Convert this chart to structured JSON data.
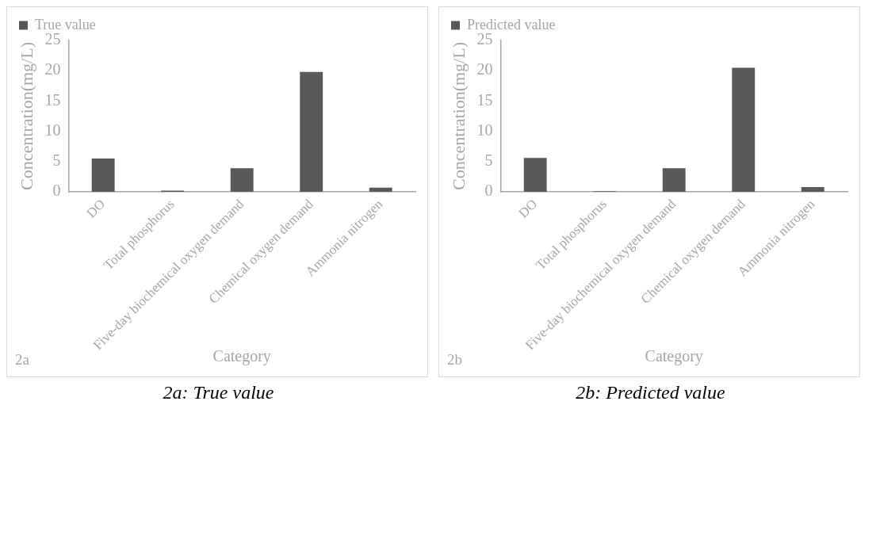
{
  "chart_data": [
    {
      "type": "bar",
      "categories": [
        "DO",
        "Total phosphorus",
        "Five-day biochemical oxygen demand",
        "Chemical oxygen demand",
        "Ammonia nitrogen"
      ],
      "series": [
        {
          "name": "True value",
          "color": "#595959",
          "values": [
            5.5,
            0.2,
            3.9,
            19.8,
            0.7
          ]
        }
      ],
      "xlabel": "Category",
      "ylabel": "Concentration(mg/L)",
      "ylim": [
        0,
        25
      ],
      "yticks": [
        0,
        5,
        10,
        15,
        20,
        25
      ],
      "grid": false,
      "legend": "top",
      "annotations": [
        "2a",
        "2a: True value"
      ]
    },
    {
      "type": "bar",
      "categories": [
        "DO",
        "Total phosphorus",
        "Five-day biochemical oxygen demand",
        "Chemical oxygen demand",
        "Ammonia nitrogen"
      ],
      "series": [
        {
          "name": "Predicted value",
          "color": "#595959",
          "values": [
            5.6,
            0.1,
            3.9,
            20.5,
            0.8
          ]
        }
      ],
      "xlabel": "Category",
      "ylabel": "Concentration(mg/L)",
      "ylim": [
        0,
        25
      ],
      "yticks": [
        0,
        5,
        10,
        15,
        20,
        25
      ],
      "grid": false,
      "legend": "top",
      "annotations": [
        "2b",
        "2b: Predicted value"
      ]
    }
  ]
}
